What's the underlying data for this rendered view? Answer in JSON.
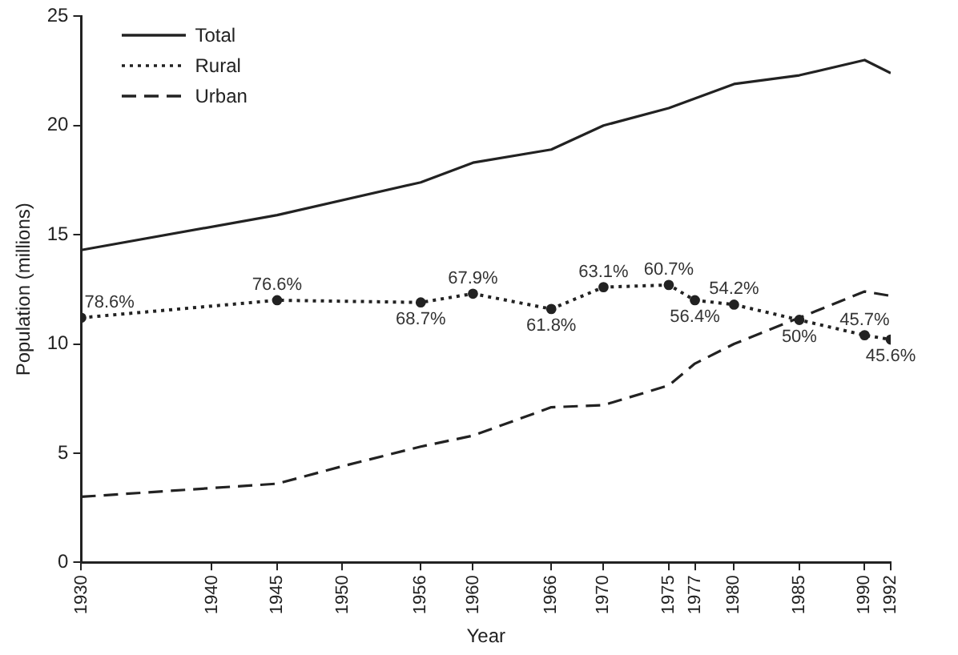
{
  "chart_data": {
    "type": "line",
    "xlabel": "Year",
    "ylabel": "Population (millions)",
    "xlim": [
      1930,
      1992
    ],
    "xticks": [
      1930,
      1940,
      1945,
      1950,
      1956,
      1960,
      1966,
      1970,
      1975,
      1977,
      1980,
      1985,
      1990,
      1992
    ],
    "ylim": [
      0,
      25
    ],
    "yticks": [
      0,
      5,
      10,
      15,
      20,
      25
    ],
    "grid": false,
    "legend": "top left",
    "series": [
      {
        "name": "Total",
        "color": "#222222",
        "line_style": "solid",
        "marker": "none",
        "x": [
          1930,
          1945,
          1956,
          1960,
          1966,
          1970,
          1975,
          1980,
          1985,
          1990,
          1992
        ],
        "values": [
          14.3,
          15.9,
          17.4,
          18.3,
          18.9,
          20.0,
          20.8,
          21.9,
          22.3,
          23.0,
          22.4
        ]
      },
      {
        "name": "Rural",
        "color": "#222222",
        "line_style": "dotted",
        "marker": "circle",
        "x": [
          1930,
          1945,
          1956,
          1960,
          1966,
          1970,
          1975,
          1977,
          1980,
          1985,
          1990,
          1992
        ],
        "values": [
          11.2,
          12.0,
          11.9,
          12.3,
          11.6,
          12.6,
          12.7,
          12.0,
          11.8,
          11.1,
          10.4,
          10.2
        ]
      },
      {
        "name": "Urban",
        "color": "#222222",
        "line_style": "dashed",
        "marker": "none",
        "x": [
          1930,
          1940,
          1945,
          1950,
          1956,
          1960,
          1966,
          1970,
          1975,
          1977,
          1980,
          1985,
          1990,
          1992
        ],
        "values": [
          3.0,
          3.4,
          3.6,
          4.4,
          5.3,
          5.8,
          7.1,
          7.2,
          8.1,
          9.1,
          10.0,
          11.2,
          12.4,
          12.2
        ]
      }
    ],
    "annotations": [
      {
        "text": "78.6%",
        "x": 1930,
        "y": 11.2
      },
      {
        "text": "76.6%",
        "x": 1945,
        "y": 12.0
      },
      {
        "text": "68.7%",
        "x": 1956,
        "y": 11.9
      },
      {
        "text": "67.9%",
        "x": 1960,
        "y": 12.3
      },
      {
        "text": "61.8%",
        "x": 1966,
        "y": 11.6
      },
      {
        "text": "63.1%",
        "x": 1970,
        "y": 12.6
      },
      {
        "text": "60.7%",
        "x": 1975,
        "y": 12.7
      },
      {
        "text": "56.4%",
        "x": 1977,
        "y": 12.0
      },
      {
        "text": "54.2%",
        "x": 1980,
        "y": 11.8
      },
      {
        "text": "50%",
        "x": 1985,
        "y": 11.1
      },
      {
        "text": "45.7%",
        "x": 1990,
        "y": 10.4
      },
      {
        "text": "45.6%",
        "x": 1992,
        "y": 10.2
      }
    ]
  }
}
